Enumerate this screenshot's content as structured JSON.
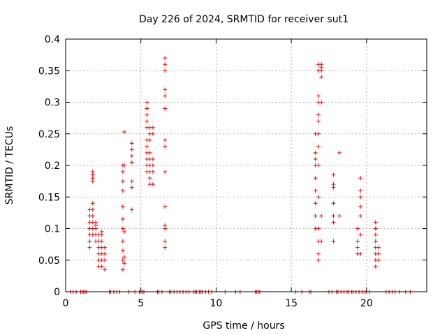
{
  "chart_data": {
    "type": "scatter",
    "title": "Day 226 of 2024, SRMTID for receiver sut1",
    "xlabel": "GPS time / hours",
    "ylabel": "SRMTID / TECUs",
    "xlim": [
      0,
      24
    ],
    "ylim": [
      0,
      0.4
    ],
    "xticks": [
      0,
      5,
      10,
      15,
      20
    ],
    "yticks": [
      0,
      0.05,
      0.1,
      0.15,
      0.2,
      0.25,
      0.3,
      0.35,
      0.4
    ],
    "xtick_labels": [
      "0",
      "5",
      "10",
      "15",
      "20"
    ],
    "ytick_labels": [
      "0",
      "0.05",
      "0.1",
      "0.15",
      "0.2",
      "0.25",
      "0.3",
      "0.35",
      "0.4"
    ],
    "grid": true,
    "marker": "+",
    "series_color": "#ff0000",
    "clusters": [
      {
        "x": 1.6,
        "y": [
          0.07,
          0.08,
          0.09,
          0.1,
          0.11,
          0.12,
          0.13
        ]
      },
      {
        "x": 1.8,
        "y": [
          0.09,
          0.1,
          0.11,
          0.12,
          0.13,
          0.14,
          0.175,
          0.18,
          0.185,
          0.19
        ]
      },
      {
        "x": 2.0,
        "y": [
          0.08,
          0.09,
          0.1,
          0.11,
          0.105
        ]
      },
      {
        "x": 2.2,
        "y": [
          0.04,
          0.05,
          0.06,
          0.07,
          0.08,
          0.09
        ]
      },
      {
        "x": 2.4,
        "y": [
          0.04,
          0.05,
          0.06,
          0.07,
          0.08,
          0.09,
          0.095
        ]
      },
      {
        "x": 2.6,
        "y": [
          0.035,
          0.05,
          0.06,
          0.07
        ]
      },
      {
        "x": 3.8,
        "y": [
          0.035,
          0.05,
          0.065,
          0.08,
          0.1,
          0.115,
          0.135,
          0.16,
          0.175,
          0.19,
          0.2
        ]
      },
      {
        "x": 3.9,
        "y": [
          0.045,
          0.055,
          0.095,
          0.2,
          0.253
        ]
      },
      {
        "x": 4.4,
        "y": [
          0.13,
          0.165,
          0.175,
          0.205,
          0.215,
          0.225,
          0.235
        ]
      },
      {
        "x": 5.4,
        "y": [
          0.19,
          0.2,
          0.21,
          0.22,
          0.23,
          0.24,
          0.26,
          0.27,
          0.28,
          0.29,
          0.3
        ]
      },
      {
        "x": 5.6,
        "y": [
          0.17,
          0.18,
          0.19,
          0.2,
          0.21,
          0.22,
          0.24,
          0.25,
          0.26
        ]
      },
      {
        "x": 5.8,
        "y": [
          0.17,
          0.19,
          0.2,
          0.21,
          0.25,
          0.26
        ]
      },
      {
        "x": 6.6,
        "y": [
          0.07,
          0.08,
          0.1,
          0.105,
          0.135,
          0.19,
          0.23,
          0.24,
          0.29,
          0.31,
          0.32,
          0.35,
          0.36,
          0.37
        ]
      },
      {
        "x": 16.6,
        "y": [
          0.1,
          0.12,
          0.14,
          0.16,
          0.18,
          0.2,
          0.21,
          0.22,
          0.25
        ]
      },
      {
        "x": 16.8,
        "y": [
          0.05,
          0.06,
          0.08,
          0.1,
          0.15,
          0.2,
          0.23,
          0.25,
          0.27,
          0.28,
          0.3,
          0.31,
          0.35,
          0.36
        ]
      },
      {
        "x": 17.0,
        "y": [
          0.08,
          0.12,
          0.3,
          0.34,
          0.35,
          0.355,
          0.36
        ]
      },
      {
        "x": 17.8,
        "y": [
          0.08,
          0.11,
          0.12,
          0.14,
          0.165,
          0.17,
          0.185
        ]
      },
      {
        "x": 18.2,
        "y": [
          0.12,
          0.22
        ]
      },
      {
        "x": 19.4,
        "y": [
          0.06,
          0.07,
          0.08,
          0.1
        ]
      },
      {
        "x": 19.6,
        "y": [
          0.06,
          0.09,
          0.12,
          0.135,
          0.15,
          0.16,
          0.18
        ]
      },
      {
        "x": 20.6,
        "y": [
          0.04,
          0.05,
          0.06,
          0.07,
          0.08,
          0.09,
          0.1,
          0.11
        ]
      },
      {
        "x": 20.8,
        "y": [
          0.05,
          0.06,
          0.07
        ]
      }
    ],
    "baseline_x": [
      0.3,
      0.5,
      0.7,
      1.0,
      1.1,
      1.2,
      1.3,
      1.4,
      2.9,
      3.0,
      3.2,
      3.4,
      3.6,
      4.2,
      4.6,
      4.9,
      5.0,
      5.1,
      5.2,
      6.1,
      6.2,
      6.4,
      6.9,
      7.0,
      7.2,
      7.4,
      7.6,
      7.8,
      8.0,
      8.2,
      8.5,
      8.6,
      8.7,
      8.9,
      9.0,
      9.1,
      9.3,
      9.5,
      9.7,
      10.6,
      11.3,
      11.6,
      12.6,
      12.7,
      12.8,
      12.9,
      15.3,
      15.7,
      16.2,
      16.3,
      17.5,
      17.7,
      18.0,
      18.1,
      18.3,
      18.5,
      18.7,
      18.8,
      19.0,
      19.1,
      19.3,
      19.5,
      19.7,
      19.9,
      20.0,
      20.2,
      21.3,
      21.5,
      21.7,
      21.9,
      22.2,
      22.6,
      22.9
    ]
  }
}
